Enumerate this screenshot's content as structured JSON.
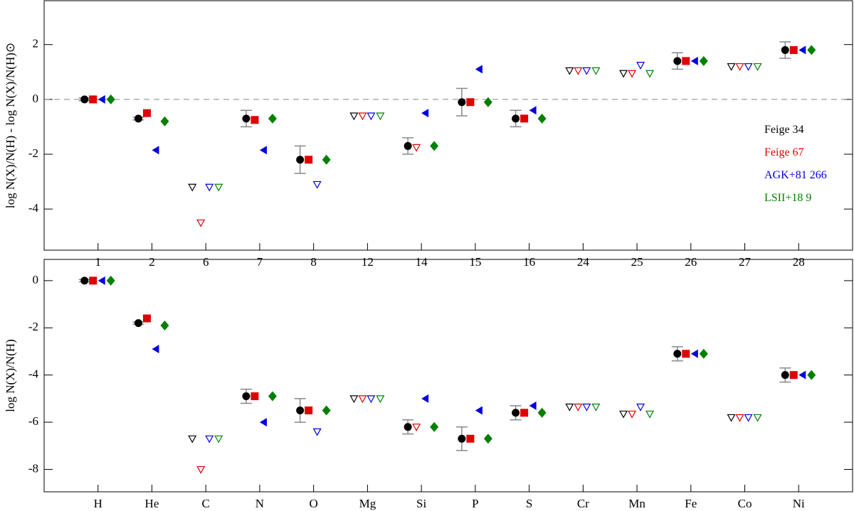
{
  "chart_data": [
    {
      "type": "scatter",
      "ylabel": "log N(X)/N(H) - log N(X)/N(H)⊙",
      "categories": [
        "1",
        "2",
        "6",
        "7",
        "8",
        "12",
        "14",
        "15",
        "16",
        "24",
        "25",
        "26",
        "27",
        "28"
      ],
      "ylim": [
        -5.5,
        3.6
      ],
      "yticks": [
        -4,
        -2,
        0,
        2
      ],
      "reference_line": 0,
      "legend": "right",
      "series": [
        {
          "name": "Feige 34",
          "color": "#000000",
          "marker": "circle",
          "values": [
            0,
            -0.7,
            -3.2,
            -0.7,
            -2.2,
            -0.6,
            -1.7,
            -0.1,
            -0.7,
            1.05,
            0.95,
            1.4,
            1.2,
            1.8
          ],
          "errors": [
            0.05,
            0.05,
            null,
            0.3,
            0.5,
            null,
            0.3,
            0.5,
            0.3,
            null,
            null,
            0.3,
            null,
            0.3
          ],
          "upper_limits": [
            false,
            false,
            true,
            false,
            false,
            true,
            false,
            false,
            false,
            true,
            true,
            false,
            true,
            false
          ]
        },
        {
          "name": "Feige 67",
          "color": "#e00000",
          "marker": "square",
          "values": [
            0,
            -0.5,
            -4.5,
            -0.75,
            -2.2,
            -0.6,
            -1.75,
            -0.1,
            -0.7,
            1.05,
            0.95,
            1.4,
            1.2,
            1.8
          ],
          "upper_limits": [
            false,
            false,
            true,
            false,
            false,
            true,
            true,
            false,
            false,
            true,
            true,
            false,
            true,
            false
          ]
        },
        {
          "name": "AGK+81 266",
          "color": "#0000e0",
          "marker": "triangle-left",
          "values": [
            0,
            -1.85,
            -3.2,
            -1.85,
            -3.1,
            -0.6,
            -0.5,
            1.1,
            -0.4,
            1.05,
            1.25,
            1.4,
            1.2,
            1.8
          ],
          "upper_limits": [
            false,
            false,
            true,
            false,
            true,
            true,
            false,
            false,
            false,
            true,
            true,
            false,
            true,
            false
          ]
        },
        {
          "name": "LSII+18 9",
          "color": "#008000",
          "marker": "diamond",
          "values": [
            0,
            -0.8,
            -3.2,
            -0.7,
            -2.2,
            -0.6,
            -1.7,
            -0.1,
            -0.7,
            1.05,
            0.95,
            1.4,
            1.2,
            1.8
          ],
          "upper_limits": [
            false,
            false,
            true,
            false,
            false,
            true,
            false,
            false,
            false,
            true,
            true,
            false,
            true,
            false
          ]
        }
      ]
    },
    {
      "type": "scatter",
      "ylabel": "log N(X)/N(H)",
      "categories": [
        "H",
        "He",
        "C",
        "N",
        "O",
        "Mg",
        "Si",
        "P",
        "S",
        "Cr",
        "Mn",
        "Fe",
        "Co",
        "Ni"
      ],
      "ylim": [
        -8.95,
        0.9
      ],
      "yticks": [
        -8,
        -6,
        -4,
        -2,
        0
      ],
      "series": [
        {
          "color": "#000000",
          "marker": "circle",
          "values": [
            0,
            -1.8,
            -6.7,
            -4.9,
            -5.5,
            -5.0,
            -6.2,
            -6.7,
            -5.6,
            -5.35,
            -5.65,
            -3.1,
            -5.8,
            -4.0
          ],
          "errors": [
            0.05,
            0.05,
            null,
            0.3,
            0.5,
            null,
            0.3,
            0.5,
            0.3,
            null,
            null,
            0.3,
            null,
            0.3
          ],
          "upper_limits": [
            false,
            false,
            true,
            false,
            false,
            true,
            false,
            false,
            false,
            true,
            true,
            false,
            true,
            false
          ]
        },
        {
          "color": "#e00000",
          "marker": "square",
          "values": [
            0,
            -1.6,
            -8.0,
            -4.9,
            -5.5,
            -5.0,
            -6.2,
            -6.7,
            -5.6,
            -5.35,
            -5.65,
            -3.1,
            -5.8,
            -4.0
          ],
          "upper_limits": [
            false,
            false,
            true,
            false,
            false,
            true,
            true,
            false,
            false,
            true,
            true,
            false,
            true,
            false
          ]
        },
        {
          "color": "#0000e0",
          "marker": "triangle-left",
          "values": [
            0,
            -2.9,
            -6.7,
            -6.0,
            -6.4,
            -5.0,
            -5.0,
            -5.5,
            -5.3,
            -5.35,
            -5.35,
            -3.1,
            -5.8,
            -4.0
          ],
          "upper_limits": [
            false,
            false,
            true,
            false,
            true,
            true,
            false,
            false,
            false,
            true,
            true,
            false,
            true,
            false
          ]
        },
        {
          "color": "#008000",
          "marker": "diamond",
          "values": [
            0,
            -1.9,
            -6.7,
            -4.9,
            -5.5,
            -5.0,
            -6.2,
            -6.7,
            -5.6,
            -5.35,
            -5.65,
            -3.1,
            -5.8,
            -4.0
          ],
          "upper_limits": [
            false,
            false,
            true,
            false,
            false,
            true,
            false,
            false,
            false,
            true,
            true,
            false,
            true,
            false
          ]
        }
      ]
    }
  ]
}
